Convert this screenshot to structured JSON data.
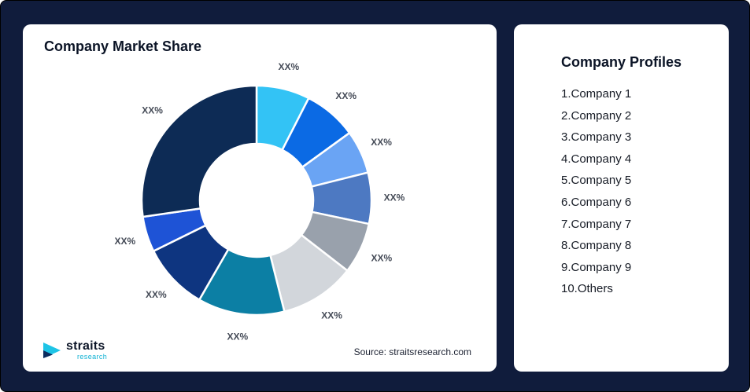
{
  "left_card": {
    "source": "Source: straitsresearch.com",
    "logo_primary": "straits",
    "logo_secondary": "research"
  },
  "right_card": {
    "title": "Company Profiles",
    "items": [
      "1.Company 1",
      "2.Company 2",
      "3.Company 3",
      "4.Company 4",
      "5.Company 5",
      "6.Company 6",
      "7.Company 7",
      "8.Company 8",
      "9.Company 9",
      "10.Others"
    ]
  },
  "chart_data": {
    "type": "pie",
    "subtype": "donut",
    "title": "Company Market Share",
    "legend_position": "none",
    "note": "All slice data labels display the placeholder text XX%; share percentages below are estimated from arc sizes, listed clockwise from 12 o'clock",
    "slices": [
      {
        "display_label": "XX%",
        "share_pct": 7.5,
        "color": "#33c3f5"
      },
      {
        "display_label": "XX%",
        "share_pct": 7.5,
        "color": "#0b6ae4"
      },
      {
        "display_label": "XX%",
        "share_pct": 6.1,
        "color": "#6aa4f4"
      },
      {
        "display_label": "XX%",
        "share_pct": 7.2,
        "color": "#4d79c2"
      },
      {
        "display_label": "XX%",
        "share_pct": 7.2,
        "color": "#99a1ac"
      },
      {
        "display_label": "XX%",
        "share_pct": 10.6,
        "color": "#d2d6db"
      },
      {
        "display_label": "XX%",
        "share_pct": 12.2,
        "color": "#0c7fa4"
      },
      {
        "display_label": "XX%",
        "share_pct": 9.4,
        "color": "#0e3580"
      },
      {
        "display_label": "XX%",
        "share_pct": 5.0,
        "color": "#1e53d6"
      },
      {
        "display_label": "XX%",
        "share_pct": 27.3,
        "color": "#0d2b55"
      }
    ]
  }
}
